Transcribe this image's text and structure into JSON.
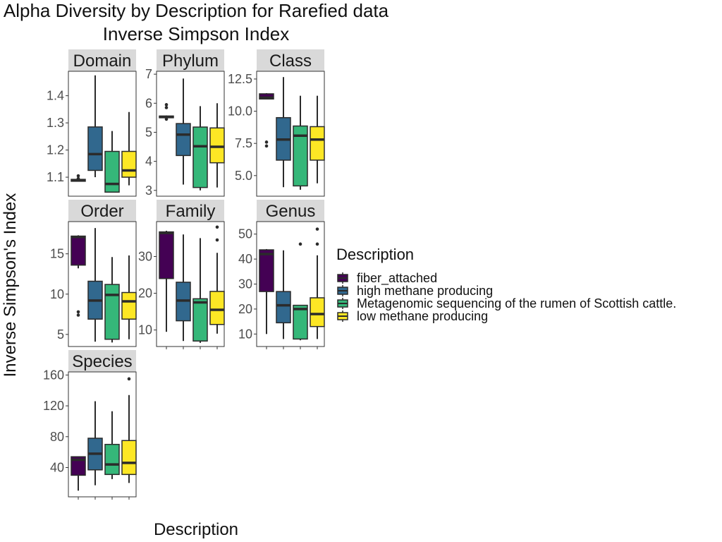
{
  "chart_data": {
    "type": "boxplot",
    "title": "Alpha Diversity by Description for Rarefied data",
    "subtitle": "Inverse Simpson Index",
    "xlabel": "Description",
    "ylabel": "Inverse Simpson's Index",
    "grid": false,
    "legend": {
      "title": "Description",
      "position": "right",
      "entries": [
        {
          "name": "fiber_attached",
          "color": "#440154"
        },
        {
          "name": "high methane producing",
          "color": "#31688E"
        },
        {
          "name": "Metagenomic sequencing of the rumen of Scottish cattle.",
          "color": "#35B779"
        },
        {
          "name": "low methane producing",
          "color": "#FDE725"
        }
      ]
    },
    "panels": [
      {
        "label": "Domain",
        "ylim": [
          1.03,
          1.49
        ],
        "ticks": [
          1.1,
          1.2,
          1.3,
          1.4
        ],
        "tick_labels": [
          "1.1",
          "1.2",
          "1.3",
          "1.4"
        ],
        "boxes": [
          {
            "min": 1.085,
            "q1": 1.085,
            "median": 1.088,
            "q3": 1.092,
            "max": 1.093,
            "outliers": [
              1.105,
              1.095
            ]
          },
          {
            "min": 1.1,
            "q1": 1.125,
            "median": 1.185,
            "q3": 1.285,
            "max": 1.475,
            "outliers": []
          },
          {
            "min": 1.045,
            "q1": 1.045,
            "median": 1.075,
            "q3": 1.195,
            "max": 1.27,
            "outliers": []
          },
          {
            "min": 1.07,
            "q1": 1.1,
            "median": 1.125,
            "q3": 1.195,
            "max": 1.34,
            "outliers": []
          }
        ]
      },
      {
        "label": "Phylum",
        "ylim": [
          2.8,
          7.1
        ],
        "ticks": [
          3,
          4,
          5,
          6,
          7
        ],
        "tick_labels": [
          "3",
          "4",
          "5",
          "6",
          "7"
        ],
        "boxes": [
          {
            "min": 5.5,
            "q1": 5.5,
            "median": 5.53,
            "q3": 5.56,
            "max": 5.58,
            "outliers": [
              5.95,
              5.85,
              5.45
            ]
          },
          {
            "min": 3.2,
            "q1": 4.2,
            "median": 4.92,
            "q3": 5.3,
            "max": 6.85,
            "outliers": []
          },
          {
            "min": 3.0,
            "q1": 3.1,
            "median": 4.52,
            "q3": 5.18,
            "max": 5.9,
            "outliers": []
          },
          {
            "min": 3.1,
            "q1": 3.95,
            "median": 4.5,
            "q3": 5.15,
            "max": 6.0,
            "outliers": []
          }
        ]
      },
      {
        "label": "Class",
        "ylim": [
          3.4,
          13.1
        ],
        "ticks": [
          5.0,
          7.5,
          10.0,
          12.5
        ],
        "tick_labels": [
          "5.0",
          "7.5",
          "10.0",
          "12.5"
        ],
        "boxes": [
          {
            "min": 10.95,
            "q1": 10.95,
            "median": 11.05,
            "q3": 11.35,
            "max": 11.4,
            "outliers": [
              7.6,
              7.3
            ]
          },
          {
            "min": 4.1,
            "q1": 6.2,
            "median": 7.8,
            "q3": 9.5,
            "max": 12.65,
            "outliers": []
          },
          {
            "min": 3.9,
            "q1": 4.2,
            "median": 8.1,
            "q3": 8.85,
            "max": 11.2,
            "outliers": []
          },
          {
            "min": 4.4,
            "q1": 6.2,
            "median": 7.8,
            "q3": 8.8,
            "max": 11.2,
            "outliers": []
          }
        ]
      },
      {
        "label": "Order",
        "ylim": [
          3.5,
          19.0
        ],
        "ticks": [
          5,
          10,
          15
        ],
        "tick_labels": [
          "5",
          "10",
          "15"
        ],
        "boxes": [
          {
            "min": 13.2,
            "q1": 13.6,
            "median": 17.1,
            "q3": 17.2,
            "max": 17.3,
            "outliers": [
              7.8,
              7.4
            ]
          },
          {
            "min": 4.1,
            "q1": 6.9,
            "median": 9.2,
            "q3": 11.6,
            "max": 18.2,
            "outliers": []
          },
          {
            "min": 4.0,
            "q1": 4.4,
            "median": 9.9,
            "q3": 11.2,
            "max": 14.6,
            "outliers": []
          },
          {
            "min": 4.4,
            "q1": 6.9,
            "median": 9.1,
            "q3": 10.2,
            "max": 14.8,
            "outliers": []
          }
        ]
      },
      {
        "label": "Family",
        "ylim": [
          5.5,
          39.5
        ],
        "ticks": [
          10,
          20,
          30
        ],
        "tick_labels": [
          "10",
          "20",
          "30"
        ],
        "boxes": [
          {
            "min": 9.5,
            "q1": 24,
            "median": 36.4,
            "q3": 36.7,
            "max": 37,
            "outliers": []
          },
          {
            "min": 7,
            "q1": 12.5,
            "median": 18,
            "q3": 23,
            "max": 36,
            "outliers": []
          },
          {
            "min": 6.5,
            "q1": 7,
            "median": 17.5,
            "q3": 18.5,
            "max": 35,
            "outliers": []
          },
          {
            "min": 9,
            "q1": 11.5,
            "median": 15.5,
            "q3": 20.5,
            "max": 31,
            "outliers": [
              38,
              34.5
            ]
          }
        ]
      },
      {
        "label": "Genus",
        "ylim": [
          5.0,
          55.0
        ],
        "ticks": [
          10,
          20,
          30,
          40,
          50
        ],
        "tick_labels": [
          "10",
          "20",
          "30",
          "40",
          "50"
        ],
        "boxes": [
          {
            "min": 10,
            "q1": 27,
            "median": 42,
            "q3": 43.7,
            "max": 44,
            "outliers": []
          },
          {
            "min": 8,
            "q1": 14.5,
            "median": 21.5,
            "q3": 27,
            "max": 43.5,
            "outliers": []
          },
          {
            "min": 7.5,
            "q1": 8,
            "median": 20,
            "q3": 21.5,
            "max": 21.5,
            "outliers": [
              46
            ]
          },
          {
            "min": 8,
            "q1": 13,
            "median": 18,
            "q3": 24.5,
            "max": 41.5,
            "outliers": [
              52,
              46
            ]
          }
        ]
      },
      {
        "label": "Species",
        "ylim": [
          2,
          164
        ],
        "ticks": [
          40,
          80,
          120,
          160
        ],
        "tick_labels": [
          "40",
          "80",
          "120",
          "160"
        ],
        "boxes": [
          {
            "min": 10,
            "q1": 30,
            "median": 50,
            "q3": 54,
            "max": 54,
            "outliers": []
          },
          {
            "min": 17,
            "q1": 37,
            "median": 58,
            "q3": 78,
            "max": 126,
            "outliers": []
          },
          {
            "min": 25,
            "q1": 31,
            "median": 44,
            "q3": 70,
            "max": 113,
            "outliers": []
          },
          {
            "min": 20,
            "q1": 31,
            "median": 46,
            "q3": 75,
            "max": 134,
            "outliers": [
              155
            ]
          }
        ]
      }
    ]
  }
}
